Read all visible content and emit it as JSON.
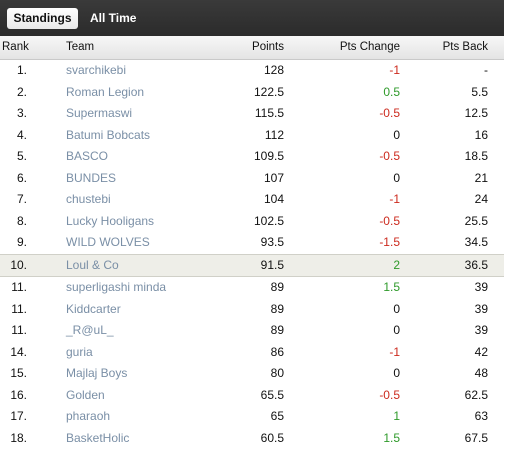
{
  "tabs": {
    "standings": "Standings",
    "all_time": "All Time"
  },
  "headers": {
    "rank": "Rank",
    "team": "Team",
    "points": "Points",
    "pts_change": "Pts Change",
    "pts_back": "Pts Back"
  },
  "colors": {
    "negative": "#cc2a1e",
    "positive": "#2e9a2a",
    "team_link": "#7a8fa6",
    "highlight_row": "#eeeee8"
  },
  "rows": [
    {
      "rank": "1.",
      "team": "svarchikebi",
      "points": "128",
      "change": "-1",
      "back": "-"
    },
    {
      "rank": "2.",
      "team": "Roman Legion",
      "points": "122.5",
      "change": "0.5",
      "back": "5.5"
    },
    {
      "rank": "3.",
      "team": "Supermaswi",
      "points": "115.5",
      "change": "-0.5",
      "back": "12.5"
    },
    {
      "rank": "4.",
      "team": "Batumi Bobcats",
      "points": "112",
      "change": "0",
      "back": "16"
    },
    {
      "rank": "5.",
      "team": "BASCO",
      "points": "109.5",
      "change": "-0.5",
      "back": "18.5"
    },
    {
      "rank": "6.",
      "team": "BUNDES",
      "points": "107",
      "change": "0",
      "back": "21"
    },
    {
      "rank": "7.",
      "team": "chustebi",
      "points": "104",
      "change": "-1",
      "back": "24"
    },
    {
      "rank": "8.",
      "team": "Lucky Hooligans",
      "points": "102.5",
      "change": "-0.5",
      "back": "25.5"
    },
    {
      "rank": "9.",
      "team": "WILD WOLVES",
      "points": "93.5",
      "change": "-1.5",
      "back": "34.5"
    },
    {
      "rank": "10.",
      "team": "Loul & Co",
      "points": "91.5",
      "change": "2",
      "back": "36.5"
    },
    {
      "rank": "11.",
      "team": "superligashi minda",
      "points": "89",
      "change": "1.5",
      "back": "39"
    },
    {
      "rank": "11.",
      "team": "Kiddcarter",
      "points": "89",
      "change": "0",
      "back": "39"
    },
    {
      "rank": "11.",
      "team": "_R@uL_",
      "points": "89",
      "change": "0",
      "back": "39"
    },
    {
      "rank": "14.",
      "team": "guria",
      "points": "86",
      "change": "-1",
      "back": "42"
    },
    {
      "rank": "15.",
      "team": "Majlaj Boys",
      "points": "80",
      "change": "0",
      "back": "48"
    },
    {
      "rank": "16.",
      "team": "Golden",
      "points": "65.5",
      "change": "-0.5",
      "back": "62.5"
    },
    {
      "rank": "17.",
      "team": "pharaoh",
      "points": "65",
      "change": "1",
      "back": "63"
    },
    {
      "rank": "18.",
      "team": "BasketHolic",
      "points": "60.5",
      "change": "1.5",
      "back": "67.5"
    }
  ]
}
